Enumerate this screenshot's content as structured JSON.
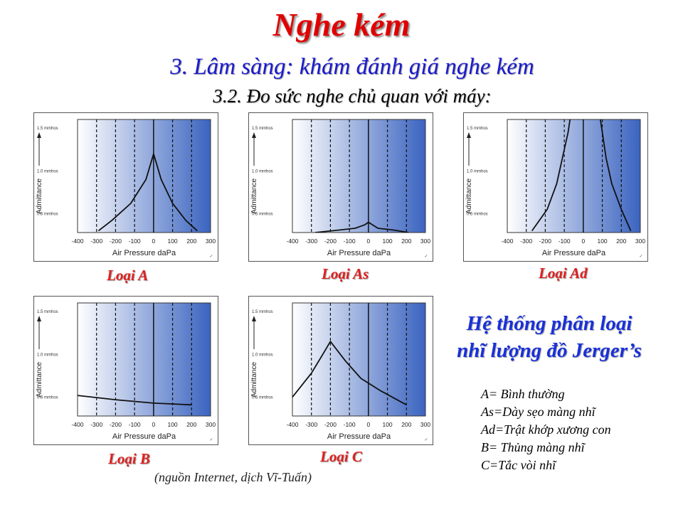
{
  "header": {
    "title": "Nghe kém",
    "subtitle": "3. Lâm sàng: khám đánh giá nghe kém",
    "subtitle2": "3.2. Đo sức nghe chủ quan với máy:"
  },
  "chart_data": [
    {
      "type": "line",
      "label": "Loại A",
      "xlabel": "Air Pressure daPa",
      "ylabel": "Admittance",
      "xticks": [
        -400,
        -300,
        -200,
        -100,
        0,
        100,
        200,
        300
      ],
      "yticks": [
        "0.5 mmhos",
        "1.0 mmhos",
        "1.5 mmhos"
      ],
      "xlim": [
        -400,
        300
      ],
      "ylim": [
        0.28,
        1.6
      ],
      "series": [
        {
          "x": [
            -290,
            -220,
            -120,
            -40,
            0,
            40,
            100,
            170,
            230
          ],
          "y": [
            0.3,
            0.42,
            0.62,
            0.9,
            1.2,
            0.9,
            0.62,
            0.42,
            0.3
          ]
        }
      ]
    },
    {
      "type": "line",
      "label": "Loại As",
      "xlabel": "Air Pressure daPa",
      "ylabel": "Admittance",
      "xticks": [
        -400,
        -300,
        -200,
        -100,
        0,
        100,
        200,
        300
      ],
      "yticks": [
        "0.5 mmhos",
        "1.0 mmhos",
        "1.5 mmhos"
      ],
      "xlim": [
        -400,
        300
      ],
      "ylim": [
        0.28,
        1.6
      ],
      "series": [
        {
          "x": [
            -280,
            -150,
            -70,
            -20,
            0,
            50,
            130,
            210
          ],
          "y": [
            0.28,
            0.31,
            0.33,
            0.37,
            0.4,
            0.33,
            0.31,
            0.28
          ]
        }
      ]
    },
    {
      "type": "line",
      "label": "Loại Ad",
      "xlabel": "Air Pressure daPa",
      "ylabel": "Admittance",
      "xticks": [
        -400,
        -300,
        -200,
        -100,
        0,
        100,
        200,
        300
      ],
      "yticks": [
        "0.5 mmhos",
        "1.0 mmhos",
        "1.5 mmhos"
      ],
      "xlim": [
        -400,
        300
      ],
      "ylim": [
        0.28,
        1.6
      ],
      "series": [
        {
          "x": [
            -270,
            -190,
            -140,
            -110,
            -80,
            -70
          ],
          "y": [
            0.3,
            0.55,
            0.85,
            1.15,
            1.45,
            1.6
          ]
        },
        {
          "x": [
            90,
            100,
            120,
            150,
            200,
            250
          ],
          "y": [
            1.6,
            1.45,
            1.15,
            0.85,
            0.55,
            0.3
          ]
        }
      ]
    },
    {
      "type": "line",
      "label": "Loại B",
      "xlabel": "Air Pressure daPa",
      "ylabel": "Admittance",
      "xticks": [
        -400,
        -300,
        -200,
        -100,
        0,
        100,
        200,
        300
      ],
      "yticks": [
        "0.5 mmhos",
        "1.0 mmhos",
        "1.5 mmhos"
      ],
      "xlim": [
        -400,
        300
      ],
      "ylim": [
        0.28,
        1.6
      ],
      "series": [
        {
          "x": [
            -400,
            -200,
            0,
            200
          ],
          "y": [
            0.52,
            0.47,
            0.43,
            0.41
          ]
        }
      ]
    },
    {
      "type": "line",
      "label": "Loại C",
      "xlabel": "Air Pressure daPa",
      "ylabel": "Admittance",
      "xticks": [
        -400,
        -300,
        -200,
        -100,
        0,
        100,
        200,
        300
      ],
      "yticks": [
        "0.5 mmhos",
        "1.0 mmhos",
        "1.5 mmhos"
      ],
      "xlim": [
        -400,
        300
      ],
      "ylim": [
        0.28,
        1.6
      ],
      "series": [
        {
          "x": [
            -400,
            -300,
            -240,
            -200,
            -120,
            -40,
            60,
            200
          ],
          "y": [
            0.5,
            0.78,
            1.0,
            1.15,
            0.92,
            0.72,
            0.58,
            0.41
          ]
        }
      ]
    }
  ],
  "system": {
    "title_line1": "Hệ thống phân loại",
    "title_line2": "nhĩ lượng đồ Jerger’s"
  },
  "legend": [
    "A= Bình thường",
    "As=Dày sẹo màng nhĩ",
    "Ad=Trật khớp xương con",
    "B= Thủng màng nhĩ",
    "C=Tắc vòi nhĩ"
  ],
  "source": "(nguồn Internet, dịch Vĩ-Tuấn)"
}
